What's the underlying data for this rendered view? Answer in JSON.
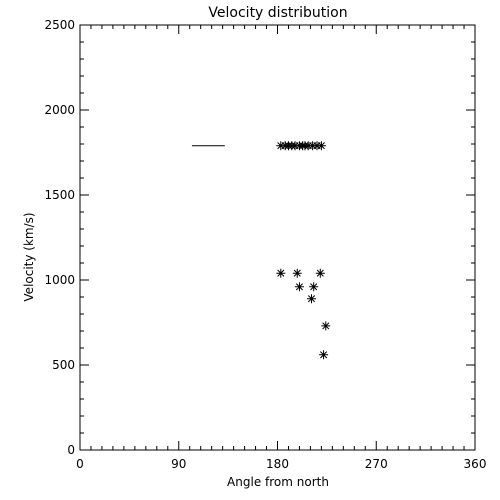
{
  "chart_data": {
    "type": "scatter",
    "title": "Velocity distribution",
    "xlabel": "Angle from north",
    "ylabel": "Velocity (km/s)",
    "xlim": [
      0,
      360
    ],
    "ylim": [
      0,
      2500
    ],
    "xticks": [
      0,
      90,
      180,
      270,
      360
    ],
    "yticks": [
      0,
      500,
      1000,
      1500,
      2000,
      2500
    ],
    "x_minor_step": 10,
    "y_minor_step": 100,
    "grid": false,
    "marker": "asterisk",
    "color": "#000000",
    "series": [
      {
        "points": [
          {
            "x": 183,
            "y": 1790
          },
          {
            "x": 187,
            "y": 1790
          },
          {
            "x": 190,
            "y": 1790
          },
          {
            "x": 193,
            "y": 1790
          },
          {
            "x": 196,
            "y": 1790
          },
          {
            "x": 200,
            "y": 1790
          },
          {
            "x": 203,
            "y": 1790
          },
          {
            "x": 205,
            "y": 1790
          },
          {
            "x": 208,
            "y": 1790
          },
          {
            "x": 212,
            "y": 1790
          },
          {
            "x": 216,
            "y": 1790
          },
          {
            "x": 220,
            "y": 1790
          },
          {
            "x": 183,
            "y": 1040
          },
          {
            "x": 198,
            "y": 1040
          },
          {
            "x": 219,
            "y": 1040
          },
          {
            "x": 200,
            "y": 960
          },
          {
            "x": 213,
            "y": 960
          },
          {
            "x": 211,
            "y": 890
          },
          {
            "x": 224,
            "y": 730
          },
          {
            "x": 222,
            "y": 560
          }
        ]
      }
    ],
    "segments": [
      {
        "x1": 102,
        "x2": 132,
        "y": 1790
      }
    ]
  }
}
